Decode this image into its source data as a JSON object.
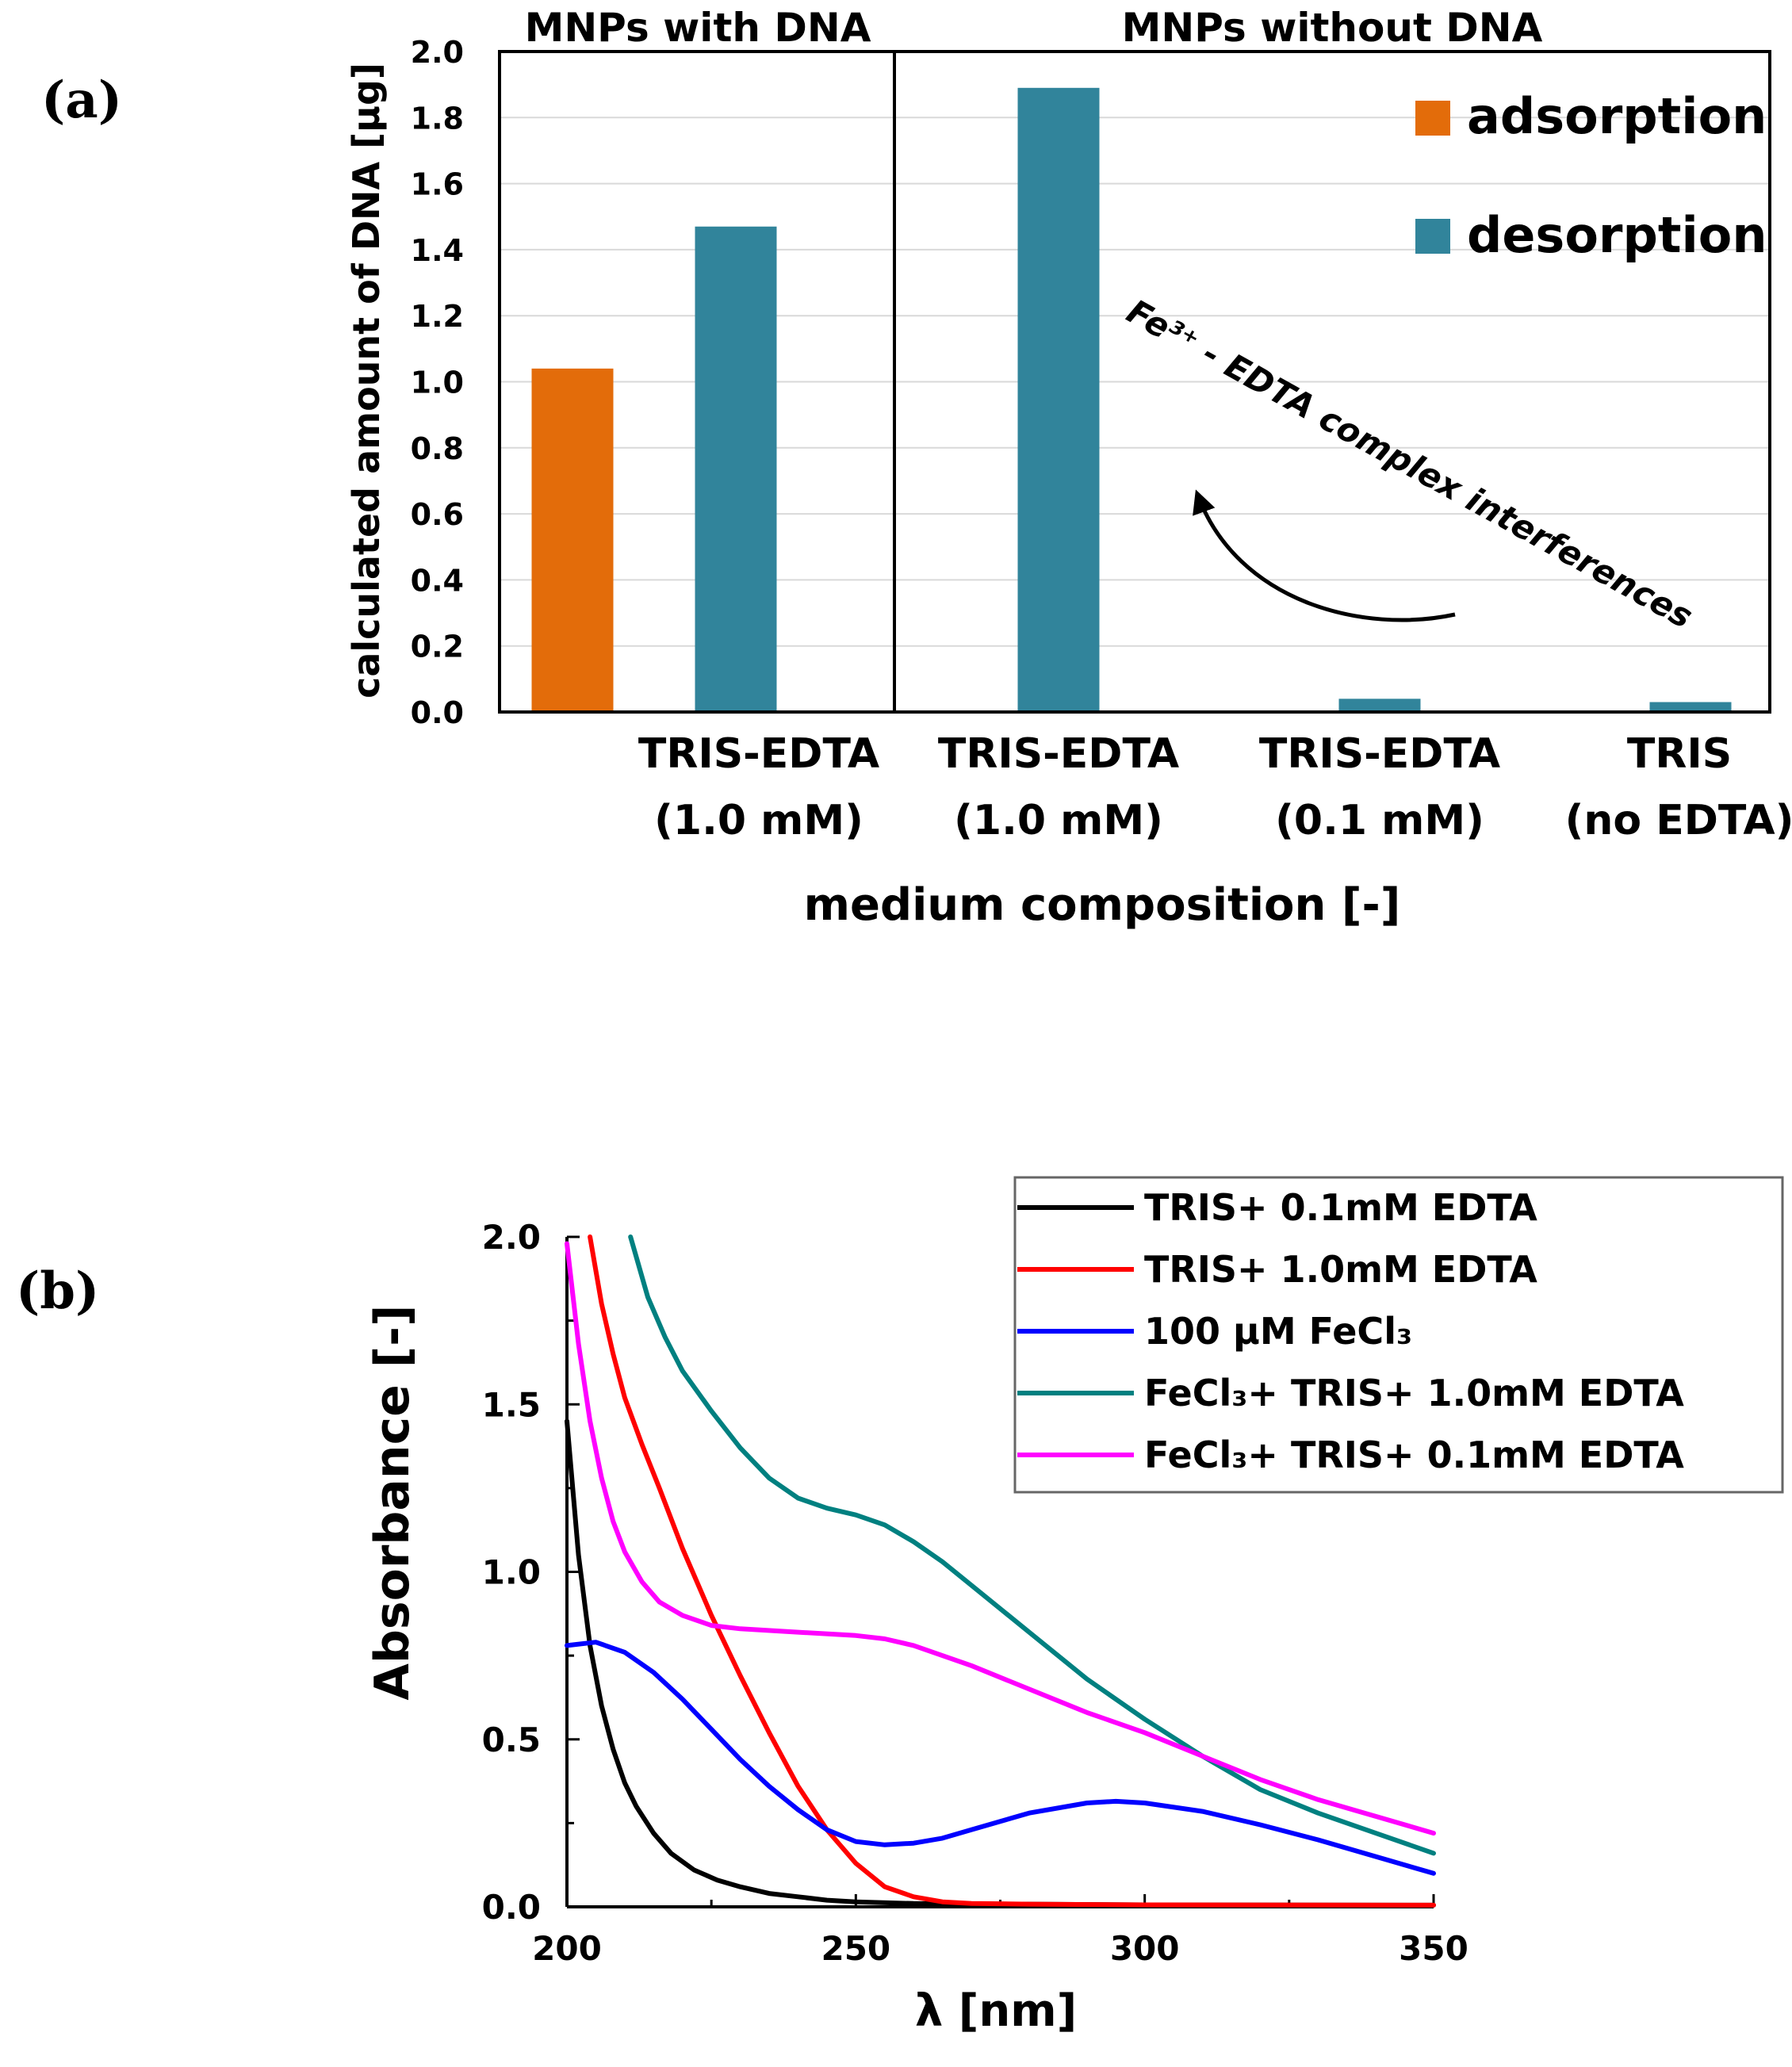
{
  "chart_data": [
    {
      "type": "bar",
      "panel_label": "(a)",
      "ylabel": "calculated amount of DNA [µg]",
      "xlabel": "medium composition [-]",
      "ylim": [
        0,
        2.0
      ],
      "yticks": [
        "0.0",
        "0.2",
        "0.4",
        "0.6",
        "0.8",
        "1.0",
        "1.2",
        "1.4",
        "1.6",
        "1.8",
        "2.0"
      ],
      "grid": true,
      "group_titles": [
        "MNPs with DNA",
        "MNPs without DNA"
      ],
      "category_lines": [
        [
          "",
          ""
        ],
        [
          "TRIS-EDTA",
          "(1.0 mM)"
        ],
        [
          "TRIS-EDTA",
          "(1.0 mM)"
        ],
        [
          "TRIS-EDTA",
          "(0.1 mM)"
        ],
        [
          "TRIS",
          "(no EDTA)"
        ]
      ],
      "series": [
        {
          "name": "adsorption",
          "color": "#E36C0A",
          "values": [
            1.04,
            null,
            null,
            null,
            null
          ]
        },
        {
          "name": "desorption",
          "color": "#31849B",
          "values": [
            null,
            1.47,
            1.89,
            0.04,
            0.03
          ]
        }
      ],
      "legend_position": "top-right",
      "annotation": "Fe³⁺ - EDTA complex interferences"
    },
    {
      "type": "line",
      "panel_label": "(b)",
      "xlabel": "λ [nm]",
      "ylabel": "Absorbance [-]",
      "xlim": [
        200,
        350
      ],
      "ylim": [
        0,
        2.0
      ],
      "xticks": [
        "200",
        "250",
        "300",
        "350"
      ],
      "yticks": [
        "0.0",
        "0.5",
        "1.0",
        "1.5",
        "2.0"
      ],
      "legend_position": "top-right",
      "series": [
        {
          "name": "TRIS+ 0.1mM EDTA",
          "color": "#000000",
          "x": [
            200,
            202,
            204,
            206,
            208,
            210,
            212,
            215,
            218,
            222,
            226,
            230,
            235,
            240,
            245,
            250,
            260,
            280,
            300,
            350
          ],
          "y": [
            1.45,
            1.05,
            0.78,
            0.6,
            0.47,
            0.37,
            0.3,
            0.22,
            0.16,
            0.11,
            0.08,
            0.06,
            0.04,
            0.03,
            0.02,
            0.015,
            0.01,
            0.008,
            0.006,
            0.005
          ]
        },
        {
          "name": "TRIS+ 1.0mM EDTA",
          "color": "#FF0000",
          "x": [
            204,
            206,
            208,
            210,
            213,
            216,
            220,
            225,
            230,
            235,
            240,
            245,
            250,
            255,
            260,
            265,
            270,
            280,
            300,
            350
          ],
          "y": [
            2.0,
            1.8,
            1.65,
            1.52,
            1.38,
            1.25,
            1.07,
            0.87,
            0.69,
            0.52,
            0.36,
            0.23,
            0.13,
            0.06,
            0.03,
            0.015,
            0.01,
            0.008,
            0.006,
            0.005
          ]
        },
        {
          "name": "100 μM FeCl₃",
          "color": "#0000FF",
          "x": [
            200,
            205,
            210,
            215,
            220,
            225,
            230,
            235,
            240,
            245,
            250,
            255,
            260,
            265,
            270,
            280,
            290,
            295,
            300,
            310,
            320,
            330,
            340,
            350
          ],
          "y": [
            0.78,
            0.79,
            0.76,
            0.7,
            0.62,
            0.53,
            0.44,
            0.36,
            0.29,
            0.23,
            0.195,
            0.185,
            0.19,
            0.205,
            0.23,
            0.28,
            0.31,
            0.315,
            0.31,
            0.285,
            0.245,
            0.2,
            0.15,
            0.1
          ]
        },
        {
          "name": "FeCl₃+ TRIS+ 1.0mM EDTA",
          "color": "#008080",
          "x": [
            211,
            214,
            217,
            220,
            225,
            230,
            235,
            240,
            245,
            250,
            255,
            260,
            265,
            270,
            280,
            290,
            300,
            310,
            320,
            330,
            340,
            350
          ],
          "y": [
            2.0,
            1.82,
            1.7,
            1.6,
            1.48,
            1.37,
            1.28,
            1.22,
            1.19,
            1.17,
            1.14,
            1.09,
            1.03,
            0.96,
            0.82,
            0.68,
            0.56,
            0.45,
            0.35,
            0.28,
            0.22,
            0.16
          ]
        },
        {
          "name": "FeCl₃+ TRIS+ 0.1mM EDTA",
          "color": "#FF00FF",
          "x": [
            200,
            202,
            204,
            206,
            208,
            210,
            213,
            216,
            220,
            225,
            230,
            240,
            250,
            255,
            260,
            270,
            280,
            290,
            300,
            310,
            320,
            330,
            340,
            350
          ],
          "y": [
            1.98,
            1.68,
            1.45,
            1.28,
            1.15,
            1.06,
            0.97,
            0.91,
            0.87,
            0.84,
            0.83,
            0.82,
            0.81,
            0.8,
            0.78,
            0.72,
            0.65,
            0.58,
            0.52,
            0.45,
            0.38,
            0.32,
            0.27,
            0.22
          ]
        }
      ]
    }
  ]
}
